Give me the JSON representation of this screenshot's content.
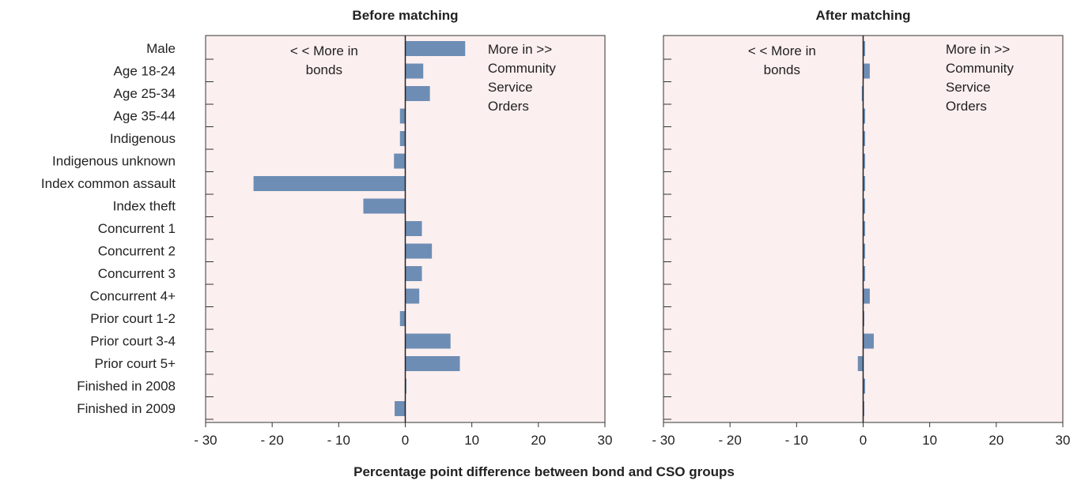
{
  "chart_data": [
    {
      "type": "bar",
      "orientation": "horizontal",
      "title": "Before matching",
      "categories": [
        "Male",
        "Age 18-24",
        "Age 25-34",
        "Age 35-44",
        "Indigenous",
        "Indigenous unknown",
        "Index common assault",
        "Index theft",
        "Concurrent 1",
        "Concurrent 2",
        "Concurrent 3",
        "Concurrent 4+",
        "Prior court 1-2",
        "Prior court 3-4",
        "Prior court 5+",
        "Finished in 2008",
        "Finished in 2009"
      ],
      "values": [
        9.0,
        2.7,
        3.7,
        -0.8,
        -0.8,
        -1.7,
        -22.8,
        -6.3,
        2.5,
        4.0,
        2.5,
        2.1,
        -0.8,
        6.8,
        8.2,
        0.1,
        -1.6
      ],
      "xlim": [
        -30,
        30
      ],
      "xticks": [
        "- 30",
        "- 20",
        "- 10",
        "0",
        "10",
        "20",
        "30"
      ],
      "annotations": {
        "left": [
          "< < More in",
          "bonds"
        ],
        "right": [
          "More in >>",
          "Community",
          "Service",
          "Orders"
        ]
      },
      "color": "#6d8db4",
      "background": "#fcefef"
    },
    {
      "type": "bar",
      "orientation": "horizontal",
      "title": "After matching",
      "categories": [
        "Male",
        "Age 18-24",
        "Age 25-34",
        "Age 35-44",
        "Indigenous",
        "Indigenous unknown",
        "Index common assault",
        "Index theft",
        "Concurrent 1",
        "Concurrent 2",
        "Concurrent 3",
        "Concurrent 4+",
        "Prior court 1-2",
        "Prior court 3-4",
        "Prior court 5+",
        "Finished in 2008",
        "Finished in 2009"
      ],
      "values": [
        0.3,
        1.0,
        -0.2,
        0.3,
        0.3,
        0.3,
        0.3,
        0.3,
        0.3,
        0.3,
        0.3,
        1.0,
        0.1,
        1.6,
        -0.8,
        0.3,
        0.1
      ],
      "xlim": [
        -30,
        30
      ],
      "xticks": [
        "- 30",
        "- 20",
        "- 10",
        "0",
        "10",
        "20",
        "30"
      ],
      "annotations": {
        "left": [
          "< < More in",
          "bonds"
        ],
        "right": [
          "More in >>",
          "Community",
          "Service",
          "Orders"
        ]
      },
      "color": "#6d8db4",
      "background": "#fcefef"
    }
  ],
  "xlabel": "Percentage point difference between bond and CSO groups"
}
